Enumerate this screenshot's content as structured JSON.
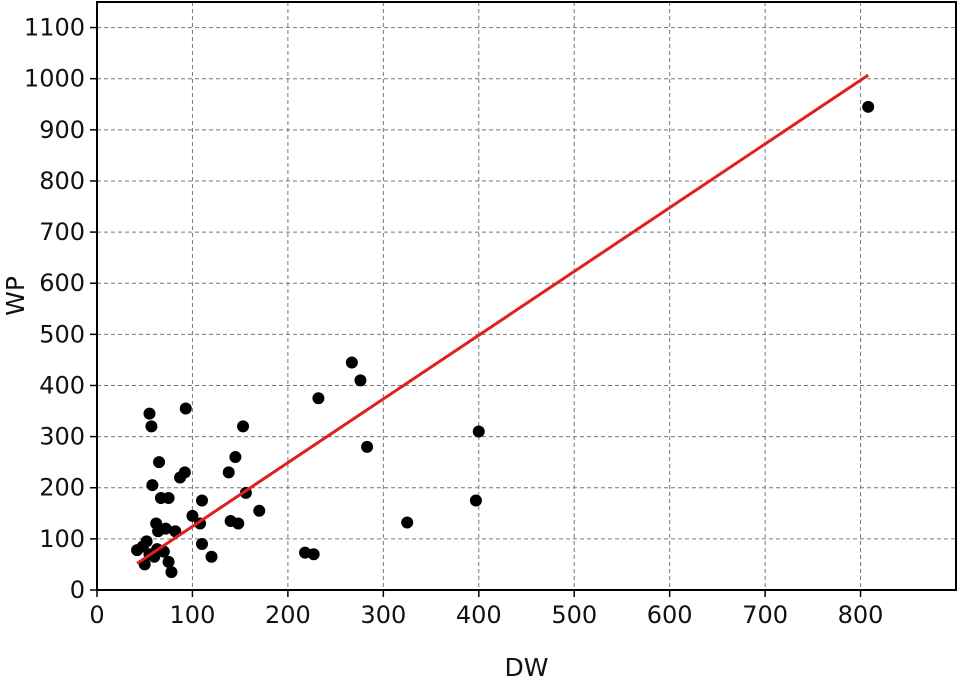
{
  "chart_data": {
    "type": "scatter",
    "title": "",
    "xlabel": "DW",
    "ylabel": "WP",
    "xlim": [
      0,
      900
    ],
    "ylim": [
      0,
      1150
    ],
    "xticks": [
      0,
      100,
      200,
      300,
      400,
      500,
      600,
      700,
      800
    ],
    "yticks": [
      0,
      100,
      200,
      300,
      400,
      500,
      600,
      700,
      800,
      900,
      1000,
      1100
    ],
    "grid": true,
    "legend": "none",
    "points": [
      {
        "x": 42,
        "y": 78
      },
      {
        "x": 48,
        "y": 85
      },
      {
        "x": 50,
        "y": 50
      },
      {
        "x": 52,
        "y": 95
      },
      {
        "x": 55,
        "y": 70
      },
      {
        "x": 55,
        "y": 345
      },
      {
        "x": 57,
        "y": 320
      },
      {
        "x": 58,
        "y": 205
      },
      {
        "x": 60,
        "y": 65
      },
      {
        "x": 62,
        "y": 130
      },
      {
        "x": 63,
        "y": 80
      },
      {
        "x": 64,
        "y": 115
      },
      {
        "x": 65,
        "y": 250
      },
      {
        "x": 67,
        "y": 180
      },
      {
        "x": 70,
        "y": 75
      },
      {
        "x": 72,
        "y": 120
      },
      {
        "x": 75,
        "y": 180
      },
      {
        "x": 75,
        "y": 55
      },
      {
        "x": 78,
        "y": 35
      },
      {
        "x": 82,
        "y": 115
      },
      {
        "x": 87,
        "y": 220
      },
      {
        "x": 92,
        "y": 230
      },
      {
        "x": 93,
        "y": 355
      },
      {
        "x": 100,
        "y": 145
      },
      {
        "x": 108,
        "y": 130
      },
      {
        "x": 110,
        "y": 175
      },
      {
        "x": 110,
        "y": 90
      },
      {
        "x": 120,
        "y": 65
      },
      {
        "x": 138,
        "y": 230
      },
      {
        "x": 140,
        "y": 135
      },
      {
        "x": 145,
        "y": 260
      },
      {
        "x": 148,
        "y": 130
      },
      {
        "x": 153,
        "y": 320
      },
      {
        "x": 156,
        "y": 190
      },
      {
        "x": 170,
        "y": 155
      },
      {
        "x": 218,
        "y": 73
      },
      {
        "x": 227,
        "y": 70
      },
      {
        "x": 232,
        "y": 375
      },
      {
        "x": 267,
        "y": 445
      },
      {
        "x": 276,
        "y": 410
      },
      {
        "x": 283,
        "y": 280
      },
      {
        "x": 325,
        "y": 132
      },
      {
        "x": 397,
        "y": 175
      },
      {
        "x": 400,
        "y": 310
      },
      {
        "x": 808,
        "y": 945
      }
    ],
    "fit_line": {
      "x": [
        42,
        808
      ],
      "y": [
        52,
        1007
      ],
      "color": "#e02020"
    },
    "point_color": "#000000"
  }
}
